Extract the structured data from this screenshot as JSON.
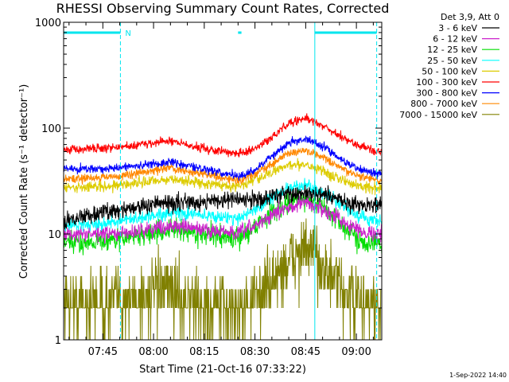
{
  "chart_data": {
    "type": "line",
    "title": "RHESSI Observing Summary Count Rates, Corrected",
    "xlabel": "Start Time (21-Oct-16 07:33:22)",
    "ylabel": "Corrected Count Rate (s⁻¹ detector⁻¹)",
    "y_scale": "log",
    "ylim": [
      1,
      1000
    ],
    "xlim": [
      "07:33:22",
      "09:07:30"
    ],
    "x_minutes_from_0700": [
      33.4,
      127.5
    ],
    "x_ticks": [
      "07:45",
      "08:00",
      "08:15",
      "08:30",
      "08:45",
      "09:00"
    ],
    "y_ticks": [
      "1",
      "10",
      "100",
      "1000"
    ],
    "legend_header": "Det 3,9, Att 0",
    "legend_placement": "right",
    "timestamp": "1-Sep-2022 14:40",
    "markers": {
      "night_label": "N",
      "bar_color": "#00e5ee",
      "night_bars_minutes": [
        [
          33.4,
          50.2
        ],
        [
          85.0,
          86.0
        ],
        [
          107.7,
          126.0
        ]
      ],
      "dashed_lines_minutes": [
        50.2,
        126.0
      ],
      "solid_lines_minutes": [
        33.4,
        107.7
      ]
    },
    "series": [
      {
        "name": "3 - 6 keV",
        "color": "#000000",
        "noise": 0.08,
        "points": [
          [
            33.4,
            13
          ],
          [
            40,
            15
          ],
          [
            50,
            17
          ],
          [
            60,
            19
          ],
          [
            70,
            20
          ],
          [
            80,
            21
          ],
          [
            90,
            21
          ],
          [
            95,
            23
          ],
          [
            100,
            24
          ],
          [
            105,
            24
          ],
          [
            110,
            23
          ],
          [
            115,
            21
          ],
          [
            120,
            19
          ],
          [
            126,
            19
          ]
        ]
      },
      {
        "name": "6 - 12 keV",
        "color": "#cc22cc",
        "noise": 0.07,
        "points": [
          [
            33.4,
            10
          ],
          [
            50,
            10
          ],
          [
            65,
            12
          ],
          [
            75,
            11
          ],
          [
            85,
            10
          ],
          [
            90,
            12
          ],
          [
            95,
            15
          ],
          [
            100,
            18
          ],
          [
            105,
            20
          ],
          [
            110,
            17
          ],
          [
            115,
            14
          ],
          [
            120,
            11
          ],
          [
            126,
            10
          ]
        ]
      },
      {
        "name": "12 - 25 keV",
        "color": "#00dd00",
        "noise": 0.1,
        "points": [
          [
            33.4,
            8
          ],
          [
            50,
            9
          ],
          [
            65,
            11
          ],
          [
            75,
            10
          ],
          [
            85,
            9
          ],
          [
            90,
            12
          ],
          [
            95,
            16
          ],
          [
            100,
            20
          ],
          [
            105,
            22
          ],
          [
            110,
            18
          ],
          [
            115,
            13
          ],
          [
            120,
            9
          ],
          [
            126,
            8
          ]
        ]
      },
      {
        "name": "25 - 50 keV",
        "color": "#00ffff",
        "noise": 0.06,
        "points": [
          [
            33.4,
            12
          ],
          [
            50,
            13
          ],
          [
            65,
            16
          ],
          [
            75,
            15
          ],
          [
            85,
            14
          ],
          [
            90,
            17
          ],
          [
            95,
            22
          ],
          [
            100,
            27
          ],
          [
            105,
            29
          ],
          [
            110,
            25
          ],
          [
            115,
            19
          ],
          [
            120,
            15
          ],
          [
            126,
            13
          ]
        ]
      },
      {
        "name": "50 - 100 keV",
        "color": "#ddcc00",
        "noise": 0.05,
        "points": [
          [
            33.4,
            27
          ],
          [
            50,
            29
          ],
          [
            65,
            33
          ],
          [
            75,
            30
          ],
          [
            85,
            28
          ],
          [
            90,
            32
          ],
          [
            95,
            38
          ],
          [
            100,
            45
          ],
          [
            105,
            46
          ],
          [
            110,
            40
          ],
          [
            115,
            33
          ],
          [
            120,
            29
          ],
          [
            126,
            27
          ]
        ]
      },
      {
        "name": "100 - 300 keV",
        "color": "#ff0000",
        "noise": 0.04,
        "points": [
          [
            33.4,
            63
          ],
          [
            50,
            66
          ],
          [
            65,
            76
          ],
          [
            75,
            64
          ],
          [
            85,
            57
          ],
          [
            90,
            64
          ],
          [
            95,
            82
          ],
          [
            100,
            110
          ],
          [
            105,
            125
          ],
          [
            110,
            105
          ],
          [
            115,
            85
          ],
          [
            120,
            70
          ],
          [
            126,
            60
          ]
        ]
      },
      {
        "name": "300 - 800 keV",
        "color": "#0000ff",
        "noise": 0.04,
        "points": [
          [
            33.4,
            41
          ],
          [
            50,
            42
          ],
          [
            65,
            48
          ],
          [
            75,
            41
          ],
          [
            85,
            35
          ],
          [
            90,
            40
          ],
          [
            95,
            55
          ],
          [
            100,
            72
          ],
          [
            105,
            80
          ],
          [
            110,
            68
          ],
          [
            115,
            52
          ],
          [
            120,
            42
          ],
          [
            126,
            37
          ]
        ]
      },
      {
        "name": "800 - 7000 keV",
        "color": "#ff8800",
        "noise": 0.04,
        "points": [
          [
            33.4,
            33
          ],
          [
            50,
            35
          ],
          [
            65,
            42
          ],
          [
            75,
            37
          ],
          [
            85,
            32
          ],
          [
            90,
            37
          ],
          [
            95,
            46
          ],
          [
            100,
            58
          ],
          [
            105,
            62
          ],
          [
            110,
            53
          ],
          [
            115,
            42
          ],
          [
            120,
            36
          ],
          [
            126,
            32
          ]
        ]
      },
      {
        "name": "7000 - 15000 keV",
        "color": "#808000",
        "noise": 0.3,
        "points": [
          [
            33.4,
            2.2
          ],
          [
            50,
            2.4
          ],
          [
            65,
            3
          ],
          [
            75,
            2
          ],
          [
            85,
            2
          ],
          [
            90,
            2.5
          ],
          [
            95,
            3.5
          ],
          [
            100,
            5.5
          ],
          [
            104,
            7
          ],
          [
            108,
            6.5
          ],
          [
            112,
            4
          ],
          [
            118,
            2.5
          ],
          [
            126,
            2
          ]
        ]
      }
    ]
  }
}
